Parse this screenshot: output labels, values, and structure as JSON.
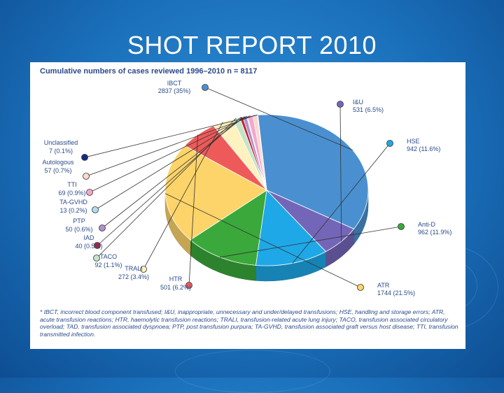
{
  "slide": {
    "title": "SHOT REPORT 2010"
  },
  "chart_data": {
    "type": "pie",
    "title": "Cumulative numbers of cases reviewed 1996–2010 n = 8117",
    "slices": [
      {
        "name": "IBCT",
        "value": 2837,
        "label_count": "2837 (35%)",
        "color": "#4a90d0"
      },
      {
        "name": "I&U",
        "value": 531,
        "label_count": "531 (6.5%)",
        "color": "#7366b8"
      },
      {
        "name": "HSE",
        "value": 942,
        "label_count": "942 (11.6%)",
        "color": "#1ea8e8"
      },
      {
        "name": "Anti-D",
        "value": 962,
        "label_count": "962 (11.9%)",
        "color": "#3aa83a"
      },
      {
        "name": "ATR",
        "value": 1744,
        "label_count": "1744 (21.5%)",
        "color": "#fcd46a"
      },
      {
        "name": "HTR",
        "value": 501,
        "label_count": "501 (6.2%)",
        "color": "#ee5a5a"
      },
      {
        "name": "TRALI",
        "value": 272,
        "label_count": "272 (3.4%)",
        "color": "#fdf2c0"
      },
      {
        "name": "TACO",
        "value": 92,
        "label_count": "92 (1.1%)",
        "color": "#c4e4c8"
      },
      {
        "name": "IAD",
        "value": 40,
        "label_count": "40 (0.5%)",
        "color": "#c02030"
      },
      {
        "name": "PTP",
        "value": 50,
        "label_count": "50 (0.6%)",
        "color": "#b090d0"
      },
      {
        "name": "TA-GVHD",
        "value": 13,
        "label_count": "13 (0.2%)",
        "color": "#b0dcf0"
      },
      {
        "name": "TTI",
        "value": 69,
        "label_count": "69 (0.9%)",
        "color": "#f4a8c8"
      },
      {
        "name": "Autologous",
        "value": 57,
        "label_count": "57 (0.7%)",
        "color": "#fcd8d0"
      },
      {
        "name": "Unclassified",
        "value": 7,
        "label_count": "7 (0.1%)",
        "color": "#1a2a80"
      }
    ],
    "footnote": "* IBCT, incorrect blood component transfused; I&U, inappropriate, unnecessary and under/delayed transfusions; HSE, handling and storage errors; ATR, acute transfusion reactions; HTR, haemolytic transfusion reactions; TRALI, transfusion-related acute lung injury; TACO, transfusion associated circulatory overload; TAD, transfusion associated dyspnoea; PTP, post transfusion purpura; TA-GVHD, transfusion associated graft versus host disease; TTI, transfusion transmitted infection."
  }
}
